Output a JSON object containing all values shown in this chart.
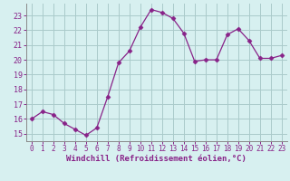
{
  "x": [
    0,
    1,
    2,
    3,
    4,
    5,
    6,
    7,
    8,
    9,
    10,
    11,
    12,
    13,
    14,
    15,
    16,
    17,
    18,
    19,
    20,
    21,
    22,
    23
  ],
  "y": [
    16.0,
    16.5,
    16.3,
    15.7,
    15.3,
    14.9,
    15.4,
    17.5,
    19.8,
    20.6,
    22.2,
    23.4,
    23.2,
    22.8,
    21.8,
    19.9,
    20.0,
    20.0,
    21.7,
    22.1,
    21.3,
    20.1,
    20.1,
    20.3
  ],
  "line_color": "#882288",
  "marker": "D",
  "marker_size": 2.5,
  "bg_color": "#d7f0f0",
  "grid_color": "#aacaca",
  "xlabel": "Windchill (Refroidissement éolien,°C)",
  "xlabel_color": "#882288",
  "tick_color": "#882288",
  "ylim": [
    14.5,
    23.8
  ],
  "xlim": [
    -0.5,
    23.5
  ],
  "yticks": [
    15,
    16,
    17,
    18,
    19,
    20,
    21,
    22,
    23
  ],
  "xticks": [
    0,
    1,
    2,
    3,
    4,
    5,
    6,
    7,
    8,
    9,
    10,
    11,
    12,
    13,
    14,
    15,
    16,
    17,
    18,
    19,
    20,
    21,
    22,
    23
  ]
}
